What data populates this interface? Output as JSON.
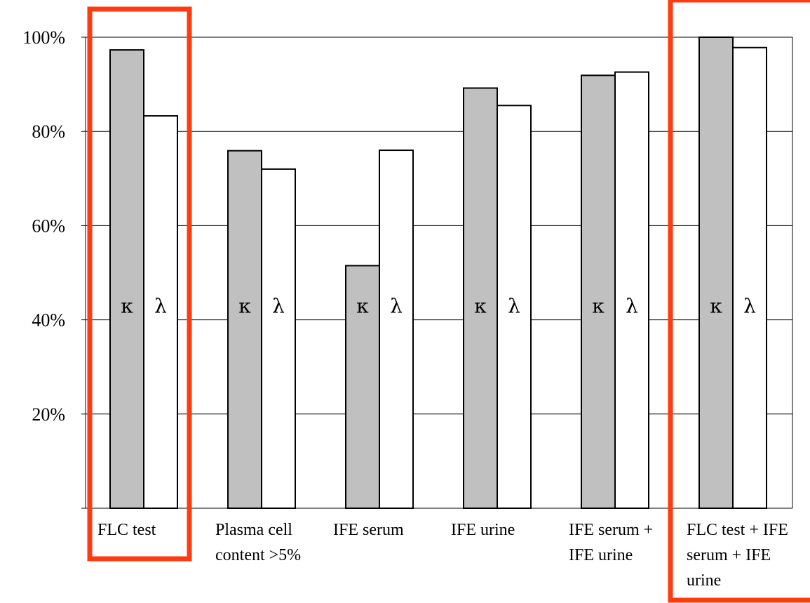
{
  "chart_data": {
    "type": "bar",
    "categories": [
      [
        "FLC test"
      ],
      [
        "Plasma cell",
        "content >5%"
      ],
      [
        "IFE serum"
      ],
      [
        "IFE urine"
      ],
      [
        "IFE serum +",
        "IFE urine"
      ],
      [
        "FLC test + IFE",
        "serum + IFE",
        "urine"
      ]
    ],
    "series": [
      {
        "name": "κ",
        "values": [
          97.3,
          75.9,
          51.5,
          89.2,
          91.9,
          100.0
        ]
      },
      {
        "name": "λ",
        "values": [
          83.3,
          72.0,
          76.0,
          85.5,
          92.6,
          97.8
        ]
      }
    ],
    "yticks": [
      "20%",
      "40%",
      "60%",
      "80%",
      "100%"
    ],
    "ylim": [
      0,
      100
    ],
    "grid": true,
    "highlighted_categories": [
      0,
      5
    ],
    "colors": {
      "kappa_fill": "#c0c0c0",
      "lambda_fill": "#ffffff",
      "bar_stroke": "#000000",
      "grid": "#000000",
      "highlight": "#ff3b0f"
    }
  }
}
